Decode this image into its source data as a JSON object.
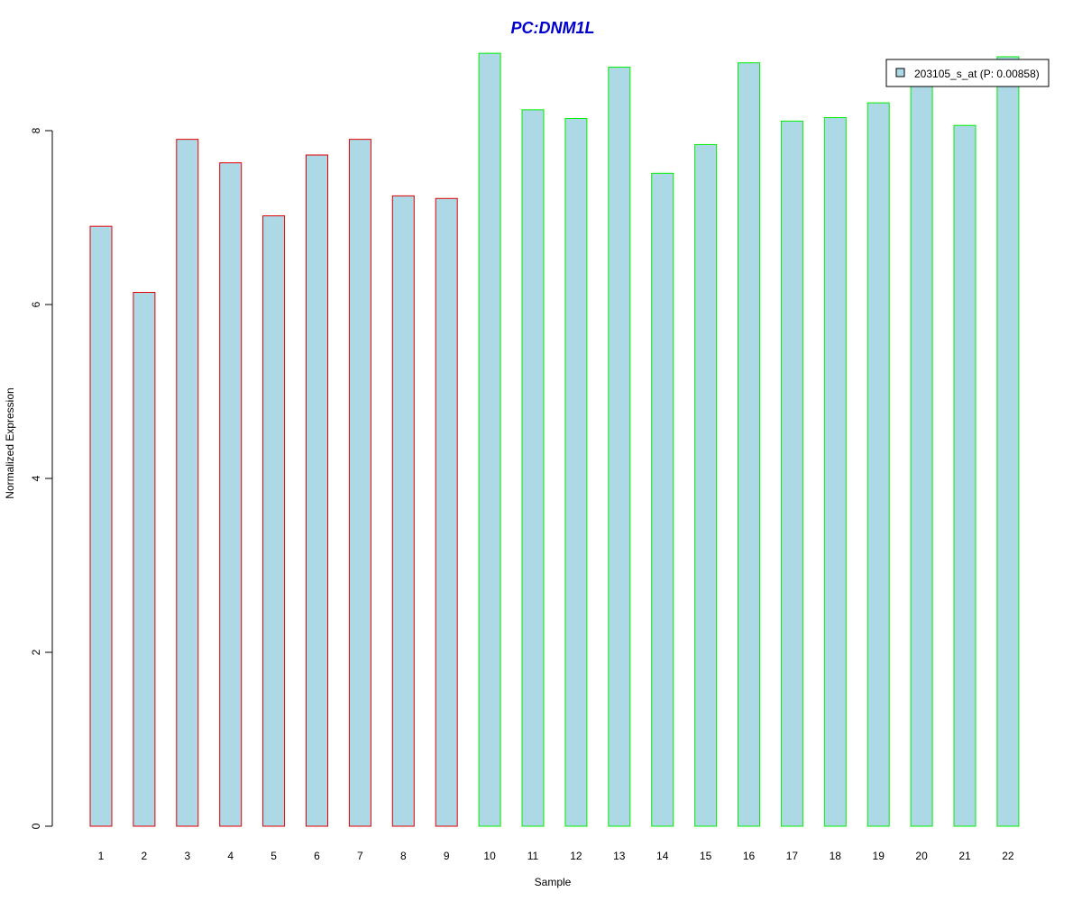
{
  "chart_data": {
    "type": "bar",
    "title": "PC:DNM1L",
    "xlabel": "Sample",
    "ylabel": "Normalized Expression",
    "ylim": [
      0,
      9.2
    ],
    "yticks": [
      0,
      2,
      4,
      6,
      8
    ],
    "categories": [
      "1",
      "2",
      "3",
      "4",
      "5",
      "6",
      "7",
      "8",
      "9",
      "10",
      "11",
      "12",
      "13",
      "14",
      "15",
      "16",
      "17",
      "18",
      "19",
      "20",
      "21",
      "22"
    ],
    "series": [
      {
        "name": "203105_s_at (P: 0.00858)",
        "values": [
          6.9,
          6.14,
          7.9,
          7.63,
          7.02,
          7.72,
          7.9,
          7.25,
          7.22,
          8.89,
          8.24,
          8.14,
          8.73,
          7.51,
          7.84,
          8.78,
          8.11,
          8.15,
          8.32,
          8.6,
          8.06,
          8.85
        ]
      }
    ],
    "bar_fill": "#add8e6",
    "group_border_colors": [
      "#e00000",
      "#e00000",
      "#e00000",
      "#e00000",
      "#e00000",
      "#e00000",
      "#e00000",
      "#e00000",
      "#e00000",
      "#00ee00",
      "#00ee00",
      "#00ee00",
      "#00ee00",
      "#00ee00",
      "#00ee00",
      "#00ee00",
      "#00ee00",
      "#00ee00",
      "#00ee00",
      "#00ee00",
      "#00ee00",
      "#00ee00"
    ],
    "title_color": "#0000cd",
    "legend_position": "top-right",
    "grid": false
  }
}
